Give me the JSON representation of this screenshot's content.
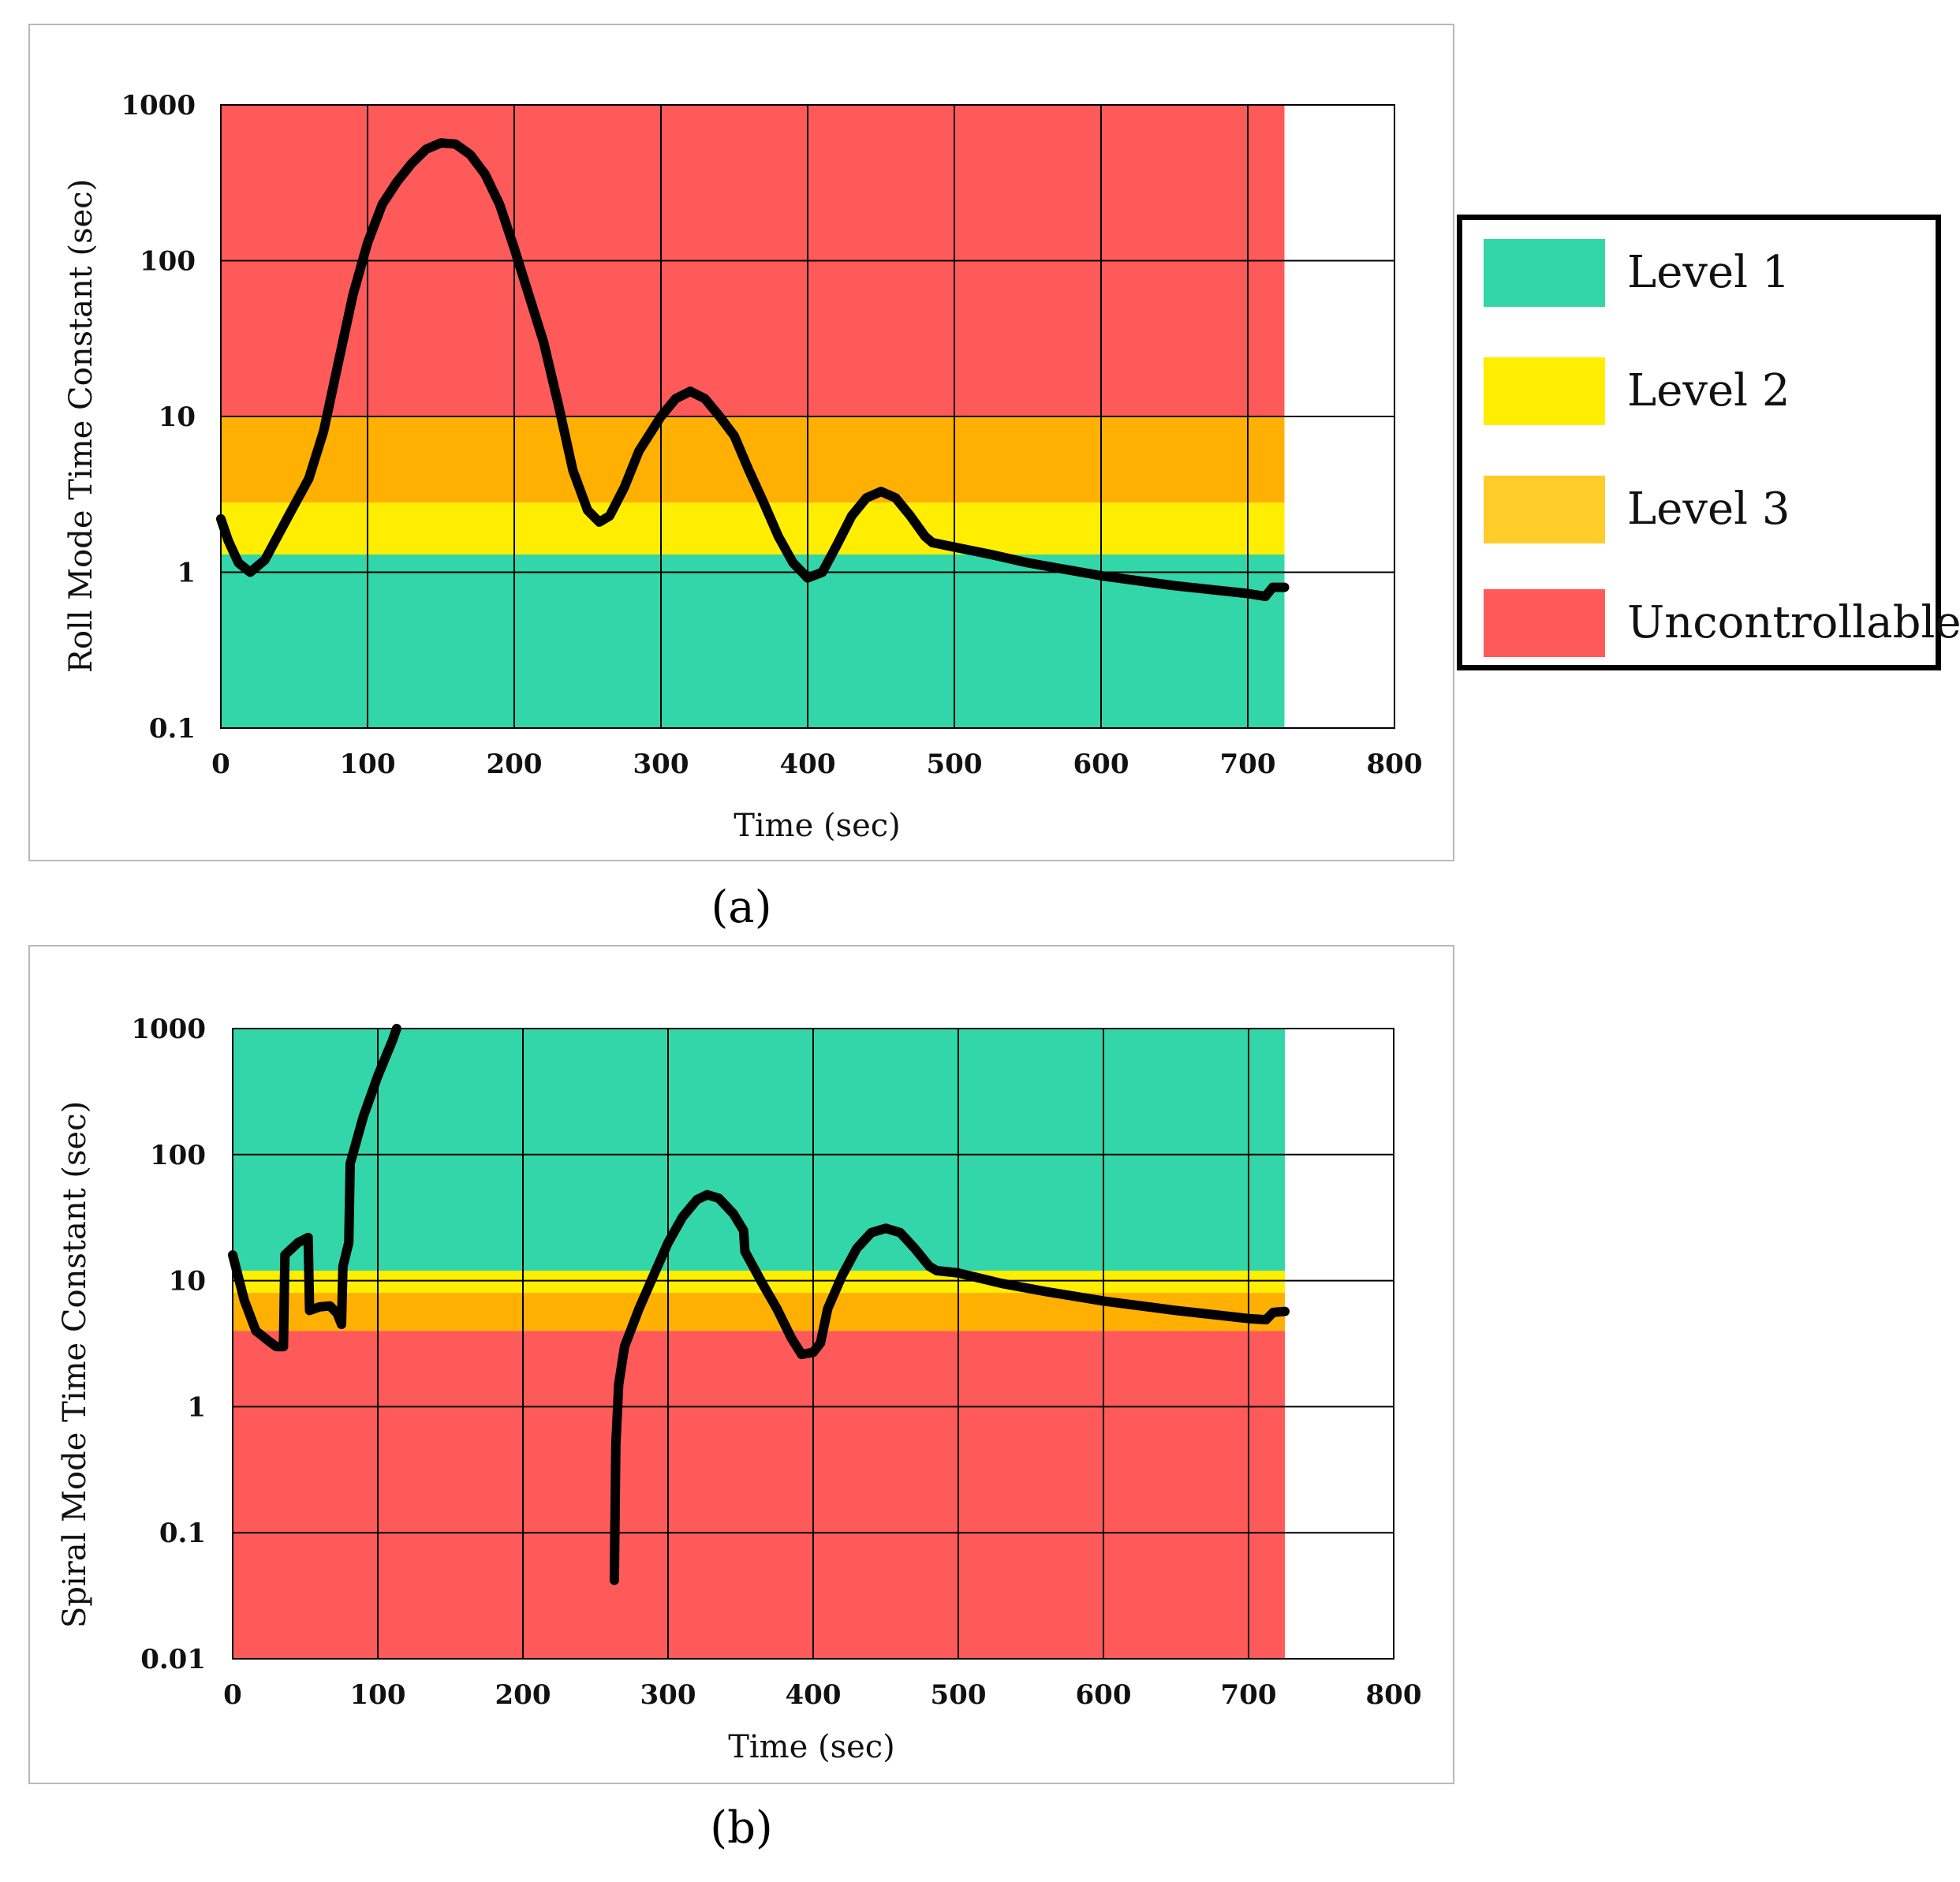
{
  "colors": {
    "level1": "#33D6A8",
    "level2": "#FFEE00",
    "level3": "#FFB000",
    "uncontrollable": "#FF5A5A",
    "level3_legend": "#FFCC2A",
    "line": "#000000",
    "grid": "#000000"
  },
  "legend": {
    "items": [
      {
        "label": "Level 1",
        "color_key": "level1"
      },
      {
        "label": "Level 2",
        "color_key": "level2"
      },
      {
        "label": "Level 3",
        "color_key": "level3_legend"
      },
      {
        "label": "Uncontrollable",
        "color_key": "uncontrollable"
      }
    ]
  },
  "captions": {
    "a": "(a)",
    "b": "(b)"
  },
  "chart_data": [
    {
      "type": "line",
      "id": "a",
      "title": "",
      "xlabel": "Time (sec)",
      "ylabel": "Roll Mode Time Constant (sec)",
      "xlim": [
        0,
        800
      ],
      "ylim": [
        0.1,
        1000
      ],
      "yscale": "log",
      "x_ticks": [
        0,
        100,
        200,
        300,
        400,
        500,
        600,
        700,
        800
      ],
      "y_ticks": [
        0.1,
        1,
        10,
        100,
        1000
      ],
      "y_tick_labels": [
        "0.1",
        "1",
        "10",
        "100",
        "1000"
      ],
      "band_x_end": 725,
      "bands": [
        {
          "level": "level1",
          "from": 0.1,
          "to": 1.3
        },
        {
          "level": "level2",
          "from": 1.3,
          "to": 2.8
        },
        {
          "level": "level3",
          "from": 2.8,
          "to": 10
        },
        {
          "level": "uncontrollable",
          "from": 10,
          "to": 1000
        }
      ],
      "series": [
        {
          "name": "Roll Mode Time Constant",
          "segments": [
            [
              [
                0,
                2.2
              ],
              [
                5,
                1.6
              ],
              [
                12,
                1.15
              ],
              [
                20,
                1.0
              ],
              [
                30,
                1.2
              ],
              [
                45,
                2.2
              ],
              [
                60,
                4
              ],
              [
                70,
                8
              ],
              [
                80,
                22
              ],
              [
                90,
                60
              ],
              [
                100,
                130
              ],
              [
                110,
                230
              ],
              [
                120,
                320
              ],
              [
                130,
                420
              ],
              [
                140,
                520
              ],
              [
                150,
                570
              ],
              [
                160,
                560
              ],
              [
                170,
                480
              ],
              [
                180,
                360
              ],
              [
                190,
                230
              ],
              [
                200,
                120
              ],
              [
                210,
                60
              ],
              [
                220,
                30
              ],
              [
                230,
                12
              ],
              [
                240,
                4.5
              ],
              [
                250,
                2.5
              ],
              [
                258,
                2.1
              ],
              [
                265,
                2.3
              ],
              [
                275,
                3.5
              ],
              [
                285,
                6
              ],
              [
                300,
                10
              ],
              [
                310,
                13
              ],
              [
                320,
                14.5
              ],
              [
                330,
                13
              ],
              [
                340,
                10
              ],
              [
                350,
                7.5
              ],
              [
                360,
                4.5
              ],
              [
                370,
                2.8
              ],
              [
                380,
                1.7
              ],
              [
                390,
                1.15
              ],
              [
                400,
                0.92
              ],
              [
                410,
                1.0
              ],
              [
                420,
                1.5
              ],
              [
                430,
                2.3
              ],
              [
                440,
                3.0
              ],
              [
                450,
                3.3
              ],
              [
                460,
                3.0
              ],
              [
                470,
                2.3
              ],
              [
                480,
                1.7
              ],
              [
                485,
                1.55
              ],
              [
                500,
                1.45
              ],
              [
                525,
                1.3
              ],
              [
                550,
                1.15
              ],
              [
                600,
                0.95
              ],
              [
                650,
                0.82
              ],
              [
                700,
                0.73
              ],
              [
                712,
                0.7
              ],
              [
                717,
                0.8
              ],
              [
                725,
                0.8
              ]
            ]
          ]
        }
      ]
    },
    {
      "type": "line",
      "id": "b",
      "title": "",
      "xlabel": "Time (sec)",
      "ylabel": "Spiral Mode Time Constant (sec)",
      "xlim": [
        0,
        800
      ],
      "ylim": [
        0.01,
        1000
      ],
      "yscale": "log",
      "x_ticks": [
        0,
        100,
        200,
        300,
        400,
        500,
        600,
        700,
        800
      ],
      "y_ticks": [
        0.01,
        0.1,
        1,
        10,
        100,
        1000
      ],
      "y_tick_labels": [
        "0.01",
        "0.1",
        "1",
        "10",
        "100",
        "1000"
      ],
      "band_x_end": 725,
      "bands": [
        {
          "level": "uncontrollable",
          "from": 0.01,
          "to": 4
        },
        {
          "level": "level3",
          "from": 4,
          "to": 8
        },
        {
          "level": "level2",
          "from": 8,
          "to": 12
        },
        {
          "level": "level1",
          "from": 12,
          "to": 1000
        }
      ],
      "series": [
        {
          "name": "Spiral Mode Time Constant",
          "segments": [
            [
              [
                0,
                16
              ],
              [
                8,
                7
              ],
              [
                16,
                4
              ],
              [
                25,
                3.3
              ],
              [
                30,
                3.0
              ],
              [
                35,
                3.0
              ],
              [
                36,
                16
              ],
              [
                45,
                20
              ],
              [
                52,
                22
              ],
              [
                53,
                5.8
              ],
              [
                60,
                6.2
              ],
              [
                67,
                6.3
              ],
              [
                72,
                5.5
              ],
              [
                75,
                4.5
              ],
              [
                76,
                13
              ],
              [
                80,
                20
              ],
              [
                81,
                85
              ],
              [
                90,
                200
              ],
              [
                100,
                420
              ],
              [
                110,
                800
              ],
              [
                113,
                1000
              ]
            ],
            [
              [
                263,
                0.042
              ],
              [
                264,
                0.5
              ],
              [
                266,
                1.5
              ],
              [
                270,
                3
              ],
              [
                280,
                6
              ],
              [
                290,
                11
              ],
              [
                300,
                20
              ],
              [
                310,
                32
              ],
              [
                320,
                44
              ],
              [
                327,
                48
              ],
              [
                335,
                45
              ],
              [
                345,
                34
              ],
              [
                352,
                25
              ],
              [
                353,
                17
              ],
              [
                365,
                9.5
              ],
              [
                375,
                6
              ],
              [
                385,
                3.5
              ],
              [
                392,
                2.6
              ],
              [
                400,
                2.7
              ],
              [
                405,
                3.2
              ],
              [
                410,
                6
              ],
              [
                420,
                11
              ],
              [
                430,
                18
              ],
              [
                440,
                24
              ],
              [
                450,
                26
              ],
              [
                460,
                24
              ],
              [
                470,
                18
              ],
              [
                480,
                13
              ],
              [
                485,
                12
              ],
              [
                500,
                11.5
              ],
              [
                530,
                9.5
              ],
              [
                560,
                8.2
              ],
              [
                600,
                6.9
              ],
              [
                650,
                5.8
              ],
              [
                700,
                5.0
              ],
              [
                712,
                4.9
              ],
              [
                717,
                5.6
              ],
              [
                725,
                5.7
              ]
            ]
          ]
        }
      ]
    }
  ]
}
